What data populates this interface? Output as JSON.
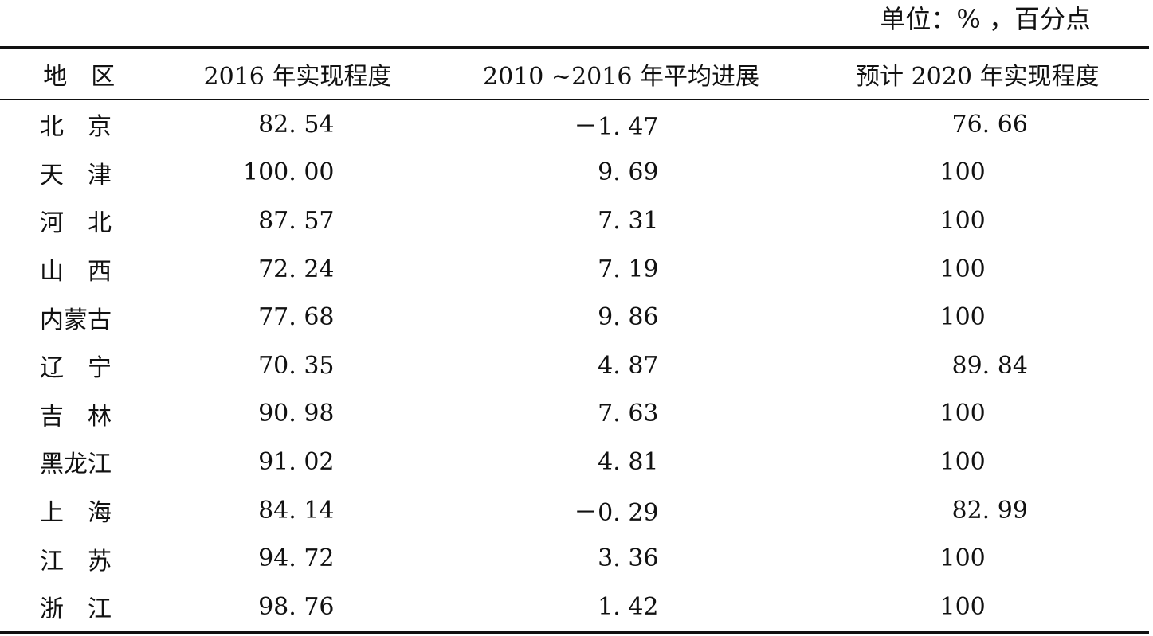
{
  "unit_note": "单位：% ，百分点",
  "table": {
    "headers": {
      "region": "地　区",
      "level_2016": "2016 年实现程度",
      "avg_progress": "2010 ~2016 年平均进展",
      "forecast_2020": "预计 2020 年实现程度"
    },
    "rows": [
      {
        "region": "北　京",
        "level_2016": "82. 54",
        "avg_progress": "－1. 47",
        "forecast_2020": "76. 66"
      },
      {
        "region": "天　津",
        "level_2016": "100. 00",
        "avg_progress": "9. 69",
        "forecast_2020": "100"
      },
      {
        "region": "河　北",
        "level_2016": "87. 57",
        "avg_progress": "7. 31",
        "forecast_2020": "100"
      },
      {
        "region": "山　西",
        "level_2016": "72. 24",
        "avg_progress": "7. 19",
        "forecast_2020": "100"
      },
      {
        "region": "内蒙古",
        "level_2016": "77. 68",
        "avg_progress": "9. 86",
        "forecast_2020": "100"
      },
      {
        "region": "辽　宁",
        "level_2016": "70. 35",
        "avg_progress": "4. 87",
        "forecast_2020": "89. 84"
      },
      {
        "region": "吉　林",
        "level_2016": "90. 98",
        "avg_progress": "7. 63",
        "forecast_2020": "100"
      },
      {
        "region": "黑龙江",
        "level_2016": "91. 02",
        "avg_progress": "4. 81",
        "forecast_2020": "100"
      },
      {
        "region": "上　海",
        "level_2016": "84. 14",
        "avg_progress": "－0. 29",
        "forecast_2020": "82. 99"
      },
      {
        "region": "江　苏",
        "level_2016": "94. 72",
        "avg_progress": "3. 36",
        "forecast_2020": "100"
      },
      {
        "region": "浙　江",
        "level_2016": "98. 76",
        "avg_progress": "1. 42",
        "forecast_2020": "100"
      }
    ]
  }
}
